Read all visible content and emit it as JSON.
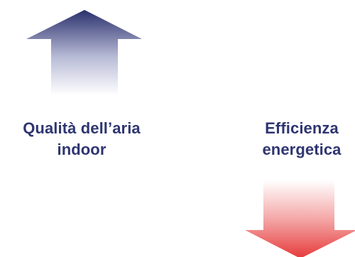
{
  "diagram": {
    "indoor_air": {
      "label_line1": "Qualità dell’aria",
      "label_line2": "indoor",
      "direction": "up",
      "color": "#2f3571",
      "arrow_icon": "arrow-up-icon"
    },
    "energy_efficiency": {
      "label_line1": "Efficienza",
      "label_line2": "energetica",
      "direction": "down",
      "color": "#e63a3a",
      "arrow_icon": "arrow-down-icon"
    }
  }
}
